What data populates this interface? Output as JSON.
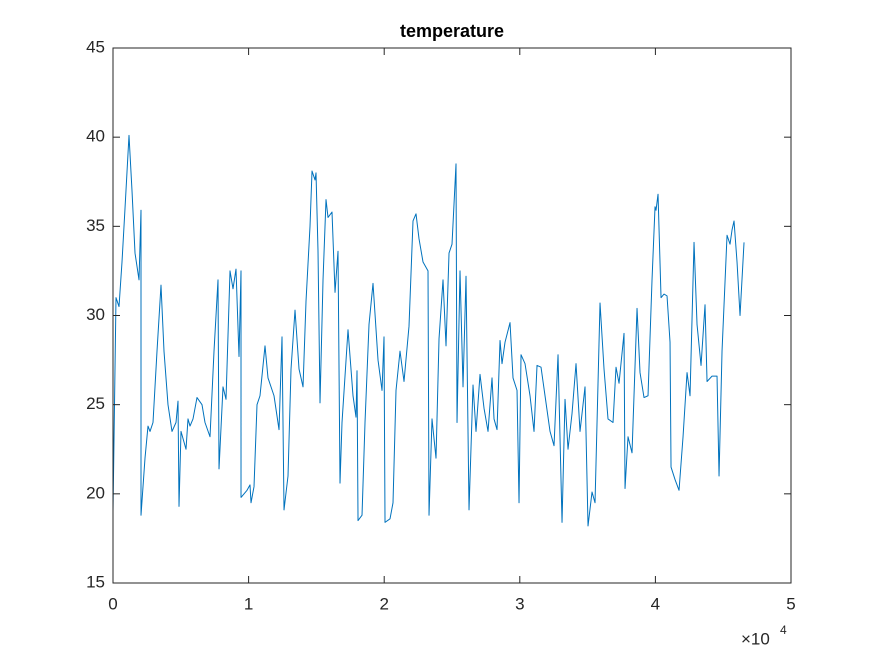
{
  "chart_data": {
    "type": "line",
    "title": "temperature",
    "color": "#0072bd",
    "xlim": [
      0,
      50000
    ],
    "ylim": [
      15,
      45
    ],
    "xticks": [
      {
        "value": 0,
        "label": "0"
      },
      {
        "value": 10000,
        "label": "1"
      },
      {
        "value": 20000,
        "label": "2"
      },
      {
        "value": 30000,
        "label": "3"
      },
      {
        "value": 40000,
        "label": "4"
      },
      {
        "value": 50000,
        "label": "5"
      }
    ],
    "yticks": [
      15,
      20,
      25,
      30,
      35,
      40,
      45
    ],
    "x_exponent": {
      "base": "×10",
      "power": "4"
    },
    "x": [
      0,
      221,
      443,
      664,
      885,
      1180,
      1401,
      1623,
      1918,
      2065,
      2066,
      2360,
      2581,
      2729,
      2950,
      3245,
      3540,
      3761,
      4056,
      4351,
      4646,
      4794,
      4868,
      5015,
      5384,
      5531,
      5679,
      5900,
      6195,
      6564,
      6785,
      7154,
      7449,
      7744,
      7818,
      8113,
      8334,
      8629,
      8850,
      9071,
      9293,
      9440,
      9441,
      9883,
      10104,
      10178,
      10399,
      10620,
      10841,
      11210,
      11431,
      11874,
      12243,
      12464,
      12611,
      12906,
      13128,
      13423,
      13718,
      14013,
      14234,
      14529,
      14676,
      14898,
      14971,
      15119,
      15266,
      15488,
      15709,
      15856,
      16151,
      16373,
      16594,
      16741,
      16889,
      17331,
      17700,
      17921,
      17995,
      18069,
      18364,
      18585,
      18880,
      19175,
      19544,
      19839,
      19986,
      20060,
      20429,
      20650,
      20871,
      21166,
      21461,
      21830,
      22125,
      22346,
      22568,
      22863,
      23231,
      23305,
      23526,
      23821,
      24043,
      24338,
      24559,
      24780,
      25001,
      25296,
      25370,
      25591,
      25813,
      26034,
      26255,
      26550,
      26771,
      27066,
      27361,
      27656,
      27951,
      28099,
      28320,
      28541,
      28689,
      28910,
      29279,
      29500,
      29795,
      29943,
      30090,
      30385,
      30754,
      31049,
      31270,
      31565,
      31860,
      32229,
      32524,
      32819,
      33114,
      33335,
      33556,
      33851,
      34146,
      34441,
      34810,
      35031,
      35326,
      35548,
      35916,
      36211,
      36506,
      36875,
      37096,
      37318,
      37686,
      37760,
      37981,
      38276,
      38645,
      38866,
      39161,
      39456,
      39751,
      39973,
      40046,
      40194,
      40415,
      40636,
      40858,
      41079,
      41153,
      41448,
      41743,
      42038,
      42333,
      42554,
      42849,
      43070,
      43365,
      43660,
      43808,
      44176,
      44545,
      44693,
      44914,
      45283,
      45504,
      45651,
      45799,
      46020,
      46241,
      46536
    ],
    "values": [
      19,
      31,
      30.5,
      33,
      36,
      40.1,
      37,
      33.5,
      32,
      35.9,
      18.8,
      22,
      23.8,
      23.5,
      24,
      28,
      31.7,
      28,
      25,
      23.5,
      24,
      25.2,
      19.3,
      23.5,
      22.5,
      24.2,
      23.8,
      24.2,
      25.4,
      25,
      24,
      23.2,
      28,
      32,
      21.4,
      26,
      25.3,
      32.5,
      31.5,
      32.6,
      27.7,
      32.5,
      19.8,
      20.2,
      20.5,
      19.5,
      20.4,
      25,
      25.5,
      28.3,
      26.5,
      25.5,
      23.6,
      28.8,
      19.1,
      21,
      27,
      30.3,
      27,
      26,
      30.8,
      35,
      38.1,
      37.6,
      38,
      33.6,
      25.1,
      32,
      36.5,
      35.5,
      35.8,
      31.3,
      33.6,
      20.6,
      24,
      29.2,
      25.5,
      24.3,
      26.9,
      18.5,
      18.8,
      24,
      29.5,
      31.8,
      27.5,
      25.8,
      28.8,
      18.4,
      18.6,
      19.5,
      25.8,
      28,
      26.3,
      29.4,
      35.3,
      35.7,
      34.3,
      33,
      32.5,
      18.8,
      24.2,
      22,
      28.7,
      32,
      28.3,
      33.5,
      34,
      38.5,
      24,
      32.5,
      26,
      32.2,
      19.1,
      26.1,
      23.5,
      26.7,
      24.8,
      23.5,
      26.5,
      24.2,
      23.6,
      28.6,
      27.3,
      28.5,
      29.6,
      26.5,
      25.8,
      19.5,
      27.8,
      27.3,
      25.5,
      23.5,
      27.2,
      27.1,
      25.5,
      23.5,
      22.7,
      27.8,
      18.4,
      25.3,
      22.5,
      24.5,
      27.3,
      23.5,
      26,
      18.2,
      20.1,
      19.5,
      30.7,
      27,
      24.2,
      24,
      27.1,
      26.2,
      29,
      20.3,
      23.2,
      22.3,
      30.4,
      26.8,
      25.4,
      25.5,
      32,
      36.1,
      35.9,
      36.8,
      31,
      31.2,
      31.1,
      28.5,
      21.5,
      20.8,
      20.2,
      23.2,
      26.8,
      25.5,
      34.1,
      29.5,
      27.2,
      30.6,
      26.3,
      26.6,
      26.6,
      21,
      28,
      34.5,
      34,
      34.8,
      35.3,
      33,
      30,
      34.1
    ]
  }
}
